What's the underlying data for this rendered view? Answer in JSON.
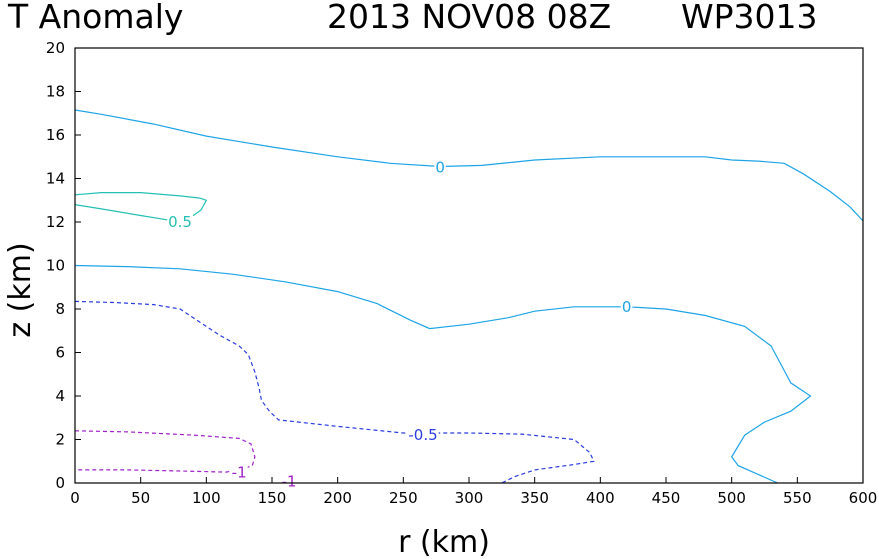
{
  "chart_data": {
    "type": "contour",
    "title": {
      "field": "T Anomaly",
      "date": "2013 NOV08 08Z",
      "storm": "WP3013"
    },
    "xlabel": "r (km)",
    "ylabel": "z (km)",
    "xlim": [
      0,
      600
    ],
    "ylim": [
      0,
      20
    ],
    "xticks": [
      0,
      50,
      100,
      150,
      200,
      250,
      300,
      350,
      400,
      450,
      500,
      550,
      600
    ],
    "yticks": [
      0,
      2,
      4,
      6,
      8,
      10,
      12,
      14,
      16,
      18,
      20
    ],
    "colors": {
      "zero": "#1ea4e6",
      "pos05": "#24c0b4",
      "neg05": "#2a3ce0",
      "neg1": "#a020c8"
    },
    "contours": [
      {
        "name": "zero-upper",
        "level": "0",
        "color_key": "zero",
        "dashed": false,
        "label_at": [
          278,
          14.5
        ],
        "points": [
          [
            0,
            17.15
          ],
          [
            20,
            16.95
          ],
          [
            60,
            16.5
          ],
          [
            100,
            15.95
          ],
          [
            150,
            15.45
          ],
          [
            200,
            15.0
          ],
          [
            240,
            14.7
          ],
          [
            278,
            14.55
          ],
          [
            310,
            14.6
          ],
          [
            350,
            14.85
          ],
          [
            400,
            15.0
          ],
          [
            450,
            15.0
          ],
          [
            480,
            15.0
          ],
          [
            500,
            14.85
          ],
          [
            520,
            14.8
          ],
          [
            540,
            14.7
          ],
          [
            555,
            14.2
          ],
          [
            575,
            13.4
          ],
          [
            590,
            12.7
          ],
          [
            600,
            12.05
          ]
        ]
      },
      {
        "name": "pos-half",
        "level": "0.5",
        "color_key": "pos05",
        "dashed": false,
        "label_at": [
          80,
          12.0
        ],
        "points": [
          [
            0,
            13.25
          ],
          [
            20,
            13.35
          ],
          [
            50,
            13.35
          ],
          [
            80,
            13.2
          ],
          [
            95,
            13.1
          ],
          [
            100,
            13.0
          ],
          [
            96,
            12.55
          ],
          [
            90,
            12.3
          ],
          [
            80,
            12.2
          ],
          [
            70,
            12.1
          ],
          [
            50,
            12.3
          ],
          [
            20,
            12.6
          ],
          [
            0,
            12.8
          ]
        ]
      },
      {
        "name": "zero-middle",
        "level": "0",
        "color_key": "zero",
        "dashed": false,
        "label_at": [
          420,
          8.1
        ],
        "points": [
          [
            0,
            10.0
          ],
          [
            40,
            9.95
          ],
          [
            80,
            9.85
          ],
          [
            120,
            9.6
          ],
          [
            160,
            9.25
          ],
          [
            200,
            8.8
          ],
          [
            230,
            8.25
          ],
          [
            255,
            7.5
          ],
          [
            270,
            7.1
          ],
          [
            300,
            7.3
          ],
          [
            330,
            7.6
          ],
          [
            350,
            7.9
          ],
          [
            380,
            8.1
          ],
          [
            420,
            8.1
          ],
          [
            450,
            8.0
          ],
          [
            480,
            7.7
          ],
          [
            510,
            7.2
          ],
          [
            530,
            6.3
          ],
          [
            538,
            5.4
          ],
          [
            545,
            4.6
          ],
          [
            560,
            4.0
          ],
          [
            545,
            3.3
          ],
          [
            525,
            2.8
          ],
          [
            510,
            2.2
          ],
          [
            500,
            1.2
          ],
          [
            505,
            0.8
          ],
          [
            520,
            0.4
          ],
          [
            535,
            0.0
          ]
        ]
      },
      {
        "name": "neg-half",
        "level": "-0.5",
        "color_key": "neg05",
        "dashed": true,
        "label_at": [
          265,
          2.2
        ],
        "points": [
          [
            0,
            8.35
          ],
          [
            30,
            8.3
          ],
          [
            60,
            8.2
          ],
          [
            80,
            8.0
          ],
          [
            95,
            7.4
          ],
          [
            110,
            6.8
          ],
          [
            125,
            6.3
          ],
          [
            132,
            5.9
          ],
          [
            137,
            5.1
          ],
          [
            140,
            4.4
          ],
          [
            142,
            3.8
          ],
          [
            148,
            3.3
          ],
          [
            155,
            2.9
          ],
          [
            200,
            2.6
          ],
          [
            250,
            2.3
          ],
          [
            300,
            2.3
          ],
          [
            340,
            2.25
          ],
          [
            380,
            2.0
          ],
          [
            392,
            1.4
          ],
          [
            395,
            1.0
          ],
          [
            380,
            0.85
          ],
          [
            350,
            0.6
          ],
          [
            335,
            0.3
          ],
          [
            325,
            0.0
          ]
        ]
      },
      {
        "name": "neg-one-outer",
        "level": "-1",
        "color_key": "neg1",
        "dashed": true,
        "label_at": [
          125,
          0.48
        ],
        "points": [
          [
            0,
            2.4
          ],
          [
            40,
            2.35
          ],
          [
            90,
            2.2
          ],
          [
            125,
            2.05
          ],
          [
            134,
            1.8
          ],
          [
            137,
            1.2
          ],
          [
            135,
            0.8
          ],
          [
            125,
            0.6
          ],
          [
            115,
            0.5
          ],
          [
            80,
            0.55
          ],
          [
            40,
            0.6
          ],
          [
            0,
            0.6
          ]
        ]
      },
      {
        "name": "neg-one-stub",
        "level": "-1",
        "color_key": "neg1",
        "dashed": true,
        "label_at": [
          163,
          0.08
        ],
        "points": [
          [
            160,
            0.18
          ],
          [
            165,
            0.0
          ]
        ]
      }
    ]
  }
}
